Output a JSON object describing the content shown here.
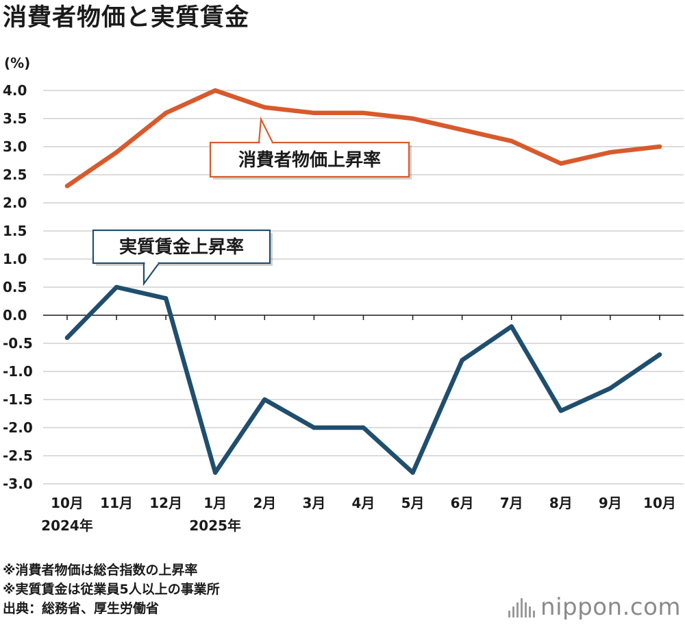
{
  "title": "消費者物価と実質賃金",
  "chart_data": {
    "type": "line",
    "ylabel": "(%)",
    "ylim": [
      -3.0,
      4.0
    ],
    "yticks": [
      "4.0",
      "3.5",
      "3.0",
      "2.5",
      "2.0",
      "1.5",
      "1.0",
      "0.5",
      "0.0",
      "-0.5",
      "-1.0",
      "-1.5",
      "-2.0",
      "-2.5",
      "-3.0"
    ],
    "categories": [
      "10月",
      "11月",
      "12月",
      "1月",
      "2月",
      "3月",
      "4月",
      "5月",
      "6月",
      "7月",
      "8月",
      "9月",
      "10月"
    ],
    "year_labels": [
      {
        "index": 0,
        "label": "2024年"
      },
      {
        "index": 3,
        "label": "2025年"
      }
    ],
    "grid": true,
    "series": [
      {
        "name": "消費者物価上昇率",
        "color": "#d85a2c",
        "values": [
          2.3,
          2.9,
          3.6,
          4.0,
          3.7,
          3.6,
          3.6,
          3.5,
          3.3,
          3.1,
          2.7,
          2.9,
          3.0
        ]
      },
      {
        "name": "実質賃金上昇率",
        "color": "#1f4e6e",
        "values": [
          -0.4,
          0.5,
          0.3,
          -2.8,
          -1.5,
          -2.0,
          -2.0,
          -2.8,
          -0.8,
          -0.2,
          -1.7,
          -1.3,
          -0.7
        ]
      }
    ]
  },
  "notes": [
    "※消費者物価は総合指数の上昇率",
    "※実質賃金は従業員5人以上の事業所"
  ],
  "source": "出典：総務省、厚生労働省",
  "logo": {
    "name": "nippon",
    "suffix": ".com",
    "icon": "bars-logo-icon"
  }
}
